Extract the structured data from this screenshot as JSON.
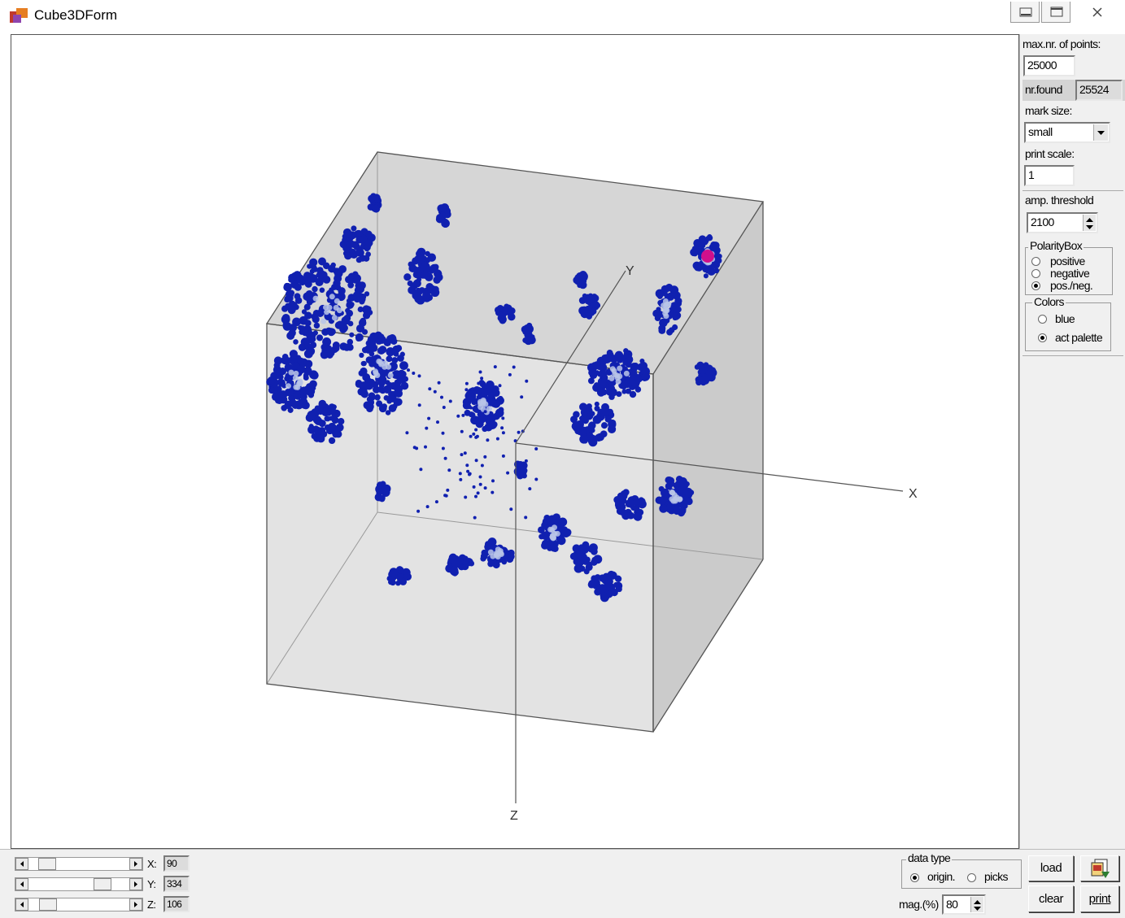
{
  "window": {
    "title": "Cube3DForm"
  },
  "panel": {
    "max_points_label": "max.nr. of points:",
    "max_points_value": "25000",
    "nr_found_label": "nr.found",
    "nr_found_value": "25524",
    "mark_size_label": "mark size:",
    "mark_size_value": "small",
    "print_scale_label": "print scale:",
    "print_scale_value": "1",
    "amp_threshold_label": "amp. threshold",
    "amp_threshold_value": "2100",
    "polarity": {
      "title": "PolarityBox",
      "options": [
        "positive",
        "negative",
        "pos./neg."
      ],
      "selected": "pos./neg."
    },
    "colors": {
      "title": "Colors",
      "options": [
        "blue",
        "act palette"
      ],
      "selected": "act palette"
    }
  },
  "axes": {
    "x": "X",
    "y": "Y",
    "z": "Z"
  },
  "sliders": {
    "x_label": "X:",
    "x_value": "90",
    "x_level": 0.12,
    "y_label": "Y:",
    "y_value": "334",
    "y_level": 0.78,
    "z_label": "Z:",
    "z_value": "106",
    "z_level": 0.13
  },
  "data_type": {
    "title": "data type",
    "options": [
      "origin.",
      "picks"
    ],
    "selected": "origin."
  },
  "magnification": {
    "label": "mag.(%)",
    "value": "80"
  },
  "buttons": {
    "load": "load",
    "clear": "clear",
    "print": "print"
  },
  "icons": {
    "app": "cube-app-icon",
    "export": "export-picture-icon"
  },
  "colors": {
    "point_fill": "#1020b0",
    "point_core": "#b8c4e8",
    "cube_face": "#dadada",
    "highlight": "#d0108c"
  }
}
